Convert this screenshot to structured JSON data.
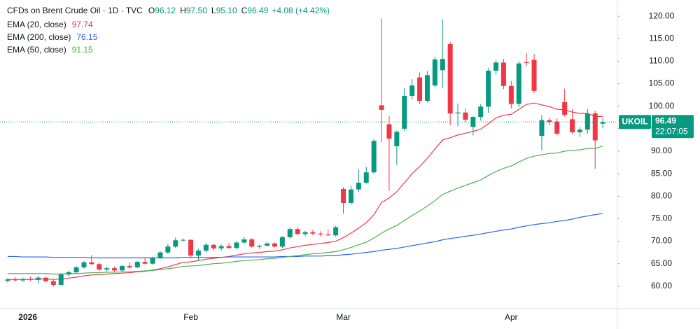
{
  "chart_data": {
    "type": "candlestick",
    "header": {
      "title": "CFDs on Brent Crude Oil · 1D · TVC",
      "fields": [
        {
          "label": "O",
          "value": "96.12"
        },
        {
          "label": "H",
          "value": "97.50"
        },
        {
          "label": "L",
          "value": "95.10"
        },
        {
          "label": "C",
          "value": "96.49"
        }
      ],
      "change": "+4.08 (+4.42%)"
    },
    "price_tag": {
      "symbol": "UKOIL",
      "last_price_label": "96.49",
      "countdown": "22:07:05"
    },
    "up_color": "#089981",
    "down_color": "#f23645",
    "categories": [
      null,
      null,
      null,
      "2026",
      null,
      null,
      null,
      null,
      null,
      null,
      null,
      null,
      null,
      null,
      null,
      null,
      null,
      null,
      null,
      null,
      null,
      null,
      null,
      null,
      "Feb",
      null,
      null,
      null,
      null,
      null,
      null,
      null,
      null,
      null,
      null,
      null,
      null,
      null,
      null,
      null,
      null,
      null,
      null,
      null,
      "Mar",
      null,
      null,
      null,
      null,
      null,
      null,
      null,
      null,
      null,
      null,
      null,
      null,
      null,
      null,
      null,
      null,
      null,
      null,
      null,
      null,
      null,
      "Apr",
      null,
      null,
      null,
      null,
      null,
      null,
      null,
      null,
      null,
      null,
      null,
      null
    ],
    "open": [
      61.2,
      61.5,
      61.3,
      61.6,
      61.4,
      61.9,
      61.1,
      60.3,
      62.6,
      63.1,
      64.2,
      65.3,
      64.9,
      63.7,
      64.0,
      63.5,
      64.5,
      64.2,
      65.4,
      65.0,
      66.3,
      67.5,
      68.8,
      70.2,
      70.3,
      66.8,
      67.9,
      69.2,
      68.4,
      68.9,
      68.5,
      69.7,
      70.4,
      68.8,
      69.0,
      69.5,
      68.8,
      70.9,
      72.7,
      71.6,
      72.0,
      71.7,
      71.5,
      71.3,
      81.6,
      78.5,
      81.5,
      83.0,
      85.3,
      100.2,
      96.0,
      91.1,
      95.0,
      102.3,
      106.4,
      101.2,
      104.6,
      108.0,
      113.8,
      98.4,
      98.6,
      95.4,
      97.6,
      99.9,
      107.9,
      109.7,
      104.5,
      100.5,
      109.8,
      110.3,
      93.4,
      96.9,
      96.6,
      100.9,
      97.1,
      94.2,
      94.8,
      98.4,
      96.12
    ],
    "high": [
      61.8,
      62.0,
      61.9,
      62.2,
      62.3,
      62.0,
      61.5,
      62.9,
      63.4,
      64.4,
      65.6,
      66.9,
      65.3,
      64.3,
      64.4,
      64.7,
      65.3,
      65.6,
      66.4,
      66.6,
      67.8,
      69.4,
      70.8,
      70.6,
      70.4,
      68.3,
      69.6,
      69.4,
      69.3,
      69.6,
      70.0,
      70.9,
      70.7,
      69.2,
      69.8,
      69.7,
      71.1,
      73.1,
      73.1,
      72.3,
      72.5,
      72.2,
      72.6,
      73.4,
      82.0,
      82.3,
      86.0,
      86.5,
      92.7,
      119.5,
      97.8,
      94.6,
      104.0,
      106.0,
      107.5,
      107.8,
      111.0,
      119.3,
      114.3,
      100.6,
      99.5,
      97.8,
      100.5,
      108.5,
      110.2,
      110.5,
      105.6,
      110.0,
      111.8,
      111.6,
      98.0,
      97.5,
      97.3,
      103.9,
      99.3,
      95.3,
      99.4,
      99.0,
      97.5
    ],
    "low": [
      60.8,
      61.0,
      60.9,
      61.1,
      60.5,
      60.9,
      59.9,
      60.1,
      62.2,
      62.8,
      63.9,
      64.8,
      63.4,
      63.2,
      63.2,
      63.3,
      63.9,
      64.0,
      64.9,
      64.8,
      66.0,
      67.2,
      68.5,
      69.9,
      66.2,
      65.6,
      67.5,
      68.0,
      67.9,
      68.3,
      68.2,
      69.4,
      68.5,
      68.3,
      68.8,
      68.6,
      68.5,
      70.6,
      71.3,
      71.1,
      71.3,
      71.1,
      71.2,
      71.0,
      76.1,
      78.1,
      81.0,
      82.8,
      84.9,
      92.0,
      81.2,
      87.0,
      94.5,
      101.5,
      100.5,
      100.8,
      104.2,
      104.0,
      95.8,
      95.5,
      96.5,
      93.5,
      96.8,
      98.5,
      107.0,
      103.8,
      99.5,
      99.8,
      108.9,
      103.0,
      90.2,
      95.8,
      93.5,
      97.7,
      93.8,
      93.2,
      93.9,
      86.1,
      95.1
    ],
    "close": [
      61.5,
      61.3,
      61.6,
      61.4,
      61.9,
      61.1,
      60.3,
      62.6,
      63.1,
      64.2,
      65.3,
      64.9,
      63.7,
      64.0,
      63.5,
      64.5,
      64.2,
      65.4,
      65.0,
      66.3,
      67.5,
      68.8,
      70.2,
      70.3,
      66.8,
      67.9,
      69.2,
      68.4,
      68.9,
      68.5,
      69.7,
      70.4,
      68.8,
      69.0,
      69.5,
      68.8,
      70.9,
      72.7,
      71.6,
      72.0,
      71.7,
      71.5,
      71.3,
      73.1,
      78.5,
      81.5,
      83.0,
      85.3,
      92.3,
      99.2,
      92.8,
      94.3,
      102.3,
      104.6,
      101.2,
      106.9,
      110.4,
      110.5,
      98.4,
      98.6,
      97.0,
      97.6,
      99.9,
      107.9,
      109.7,
      104.5,
      100.5,
      109.5,
      109.6,
      103.4,
      96.9,
      96.5,
      93.9,
      98.1,
      94.2,
      94.8,
      98.3,
      92.41,
      96.49
    ],
    "lines": [
      {
        "name": "EMA (20, close)",
        "color": "#f23645",
        "values": [
          61.5,
          61.5,
          61.5,
          61.5,
          61.6,
          61.6,
          61.5,
          61.6,
          61.8,
          62.0,
          62.3,
          62.5,
          62.6,
          62.7,
          62.8,
          62.9,
          63.0,
          63.2,
          63.3,
          63.6,
          63.9,
          64.3,
          64.8,
          65.3,
          65.4,
          65.7,
          66.0,
          66.2,
          66.4,
          66.6,
          66.9,
          67.2,
          67.4,
          67.5,
          67.7,
          67.8,
          68.1,
          68.5,
          68.8,
          69.1,
          69.3,
          69.5,
          69.7,
          70.0,
          70.8,
          71.8,
          72.9,
          74.1,
          75.9,
          78.6,
          79.6,
          81.0,
          83.0,
          85.0,
          86.6,
          88.4,
          90.5,
          92.5,
          93.0,
          93.6,
          94.0,
          94.4,
          94.9,
          96.1,
          97.4,
          98.0,
          98.2,
          99.3,
          100.4,
          100.7,
          100.3,
          99.9,
          99.3,
          99.2,
          98.7,
          98.4,
          98.4,
          97.7,
          97.74
        ]
      },
      {
        "name": "EMA (200, close)",
        "color": "#2962ff",
        "values": [
          66.6,
          66.6,
          66.5,
          66.5,
          66.5,
          66.5,
          66.4,
          66.4,
          66.4,
          66.4,
          66.4,
          66.3,
          66.3,
          66.3,
          66.3,
          66.3,
          66.3,
          66.3,
          66.3,
          66.3,
          66.3,
          66.3,
          66.3,
          66.4,
          66.4,
          66.4,
          66.4,
          66.4,
          66.4,
          66.5,
          66.5,
          66.5,
          66.5,
          66.5,
          66.5,
          66.5,
          66.6,
          66.6,
          66.6,
          66.7,
          66.7,
          66.7,
          66.8,
          66.8,
          67.0,
          67.1,
          67.3,
          67.5,
          67.7,
          68.0,
          68.2,
          68.4,
          68.7,
          69.0,
          69.3,
          69.6,
          69.9,
          70.3,
          70.6,
          70.8,
          71.1,
          71.3,
          71.6,
          71.9,
          72.2,
          72.5,
          72.7,
          73.1,
          73.4,
          73.7,
          73.9,
          74.1,
          74.4,
          74.6,
          74.9,
          75.3,
          75.6,
          75.9,
          76.15
        ]
      },
      {
        "name": "EMA (50, close)",
        "color": "#4caf50",
        "values": [
          62.8,
          62.8,
          62.8,
          62.8,
          62.8,
          62.8,
          62.7,
          62.7,
          62.8,
          62.8,
          62.9,
          63.0,
          63.0,
          63.1,
          63.1,
          63.2,
          63.2,
          63.3,
          63.4,
          63.5,
          63.7,
          63.9,
          64.1,
          64.4,
          64.5,
          64.6,
          64.8,
          65.0,
          65.1,
          65.3,
          65.5,
          65.7,
          65.8,
          65.9,
          66.1,
          66.2,
          66.4,
          66.6,
          66.8,
          67.0,
          67.2,
          67.3,
          67.5,
          67.7,
          68.1,
          68.6,
          69.2,
          69.8,
          70.7,
          71.8,
          72.7,
          73.5,
          74.6,
          75.7,
          76.7,
          77.8,
          79.0,
          80.4,
          81.1,
          81.8,
          82.4,
          83.0,
          83.6,
          84.6,
          85.5,
          86.2,
          86.7,
          87.6,
          88.4,
          88.9,
          89.2,
          89.5,
          89.6,
          90.0,
          90.2,
          90.3,
          90.6,
          90.6,
          91.15
        ]
      }
    ],
    "ylim": [
      55,
      123.6
    ],
    "yticks": [
      {
        "value": 60,
        "label": "60.00"
      },
      {
        "value": 65,
        "label": "65.00"
      },
      {
        "value": 70,
        "label": "70.00"
      },
      {
        "value": 75,
        "label": "75.00"
      },
      {
        "value": 80,
        "label": "80.00"
      },
      {
        "value": 85,
        "label": "85.00"
      },
      {
        "value": 90,
        "label": "90.00"
      },
      {
        "value": 95,
        "label": "95.00"
      },
      {
        "value": 100,
        "label": "100.00"
      },
      {
        "value": 105,
        "label": "105.00"
      },
      {
        "value": 110,
        "label": "110.00"
      },
      {
        "value": 115,
        "label": "115.00"
      },
      {
        "value": 120,
        "label": "120.00"
      }
    ]
  }
}
